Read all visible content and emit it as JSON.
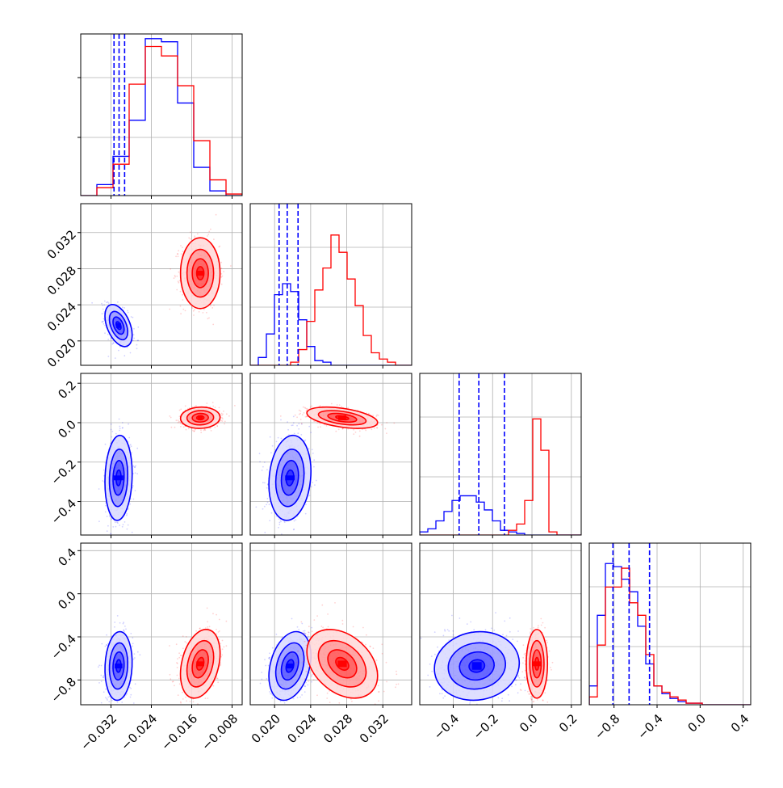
{
  "chart_data": {
    "type": "corner",
    "colors": {
      "blue": "#0000ff",
      "red": "#ff0000",
      "grid": "#b0b0b0"
    },
    "variables": [
      {
        "range": [
          -0.038,
          -0.006
        ],
        "ticks": [
          "−0.032",
          "−0.024",
          "−0.016",
          "−0.008"
        ],
        "tick_values": [
          -0.032,
          -0.024,
          -0.016,
          -0.008
        ]
      },
      {
        "range": [
          0.0173,
          0.0352
        ],
        "ticks": [
          "0.020",
          "0.024",
          "0.028",
          "0.032"
        ],
        "tick_values": [
          0.02,
          0.024,
          0.028,
          0.032
        ]
      },
      {
        "range": [
          -0.57,
          0.25
        ],
        "ticks": [
          "−0.4",
          "−0.2",
          "0.0",
          "0.2"
        ],
        "tick_values": [
          -0.4,
          -0.2,
          0.0,
          0.2
        ]
      },
      {
        "range": [
          -1.03,
          0.47
        ],
        "ticks": [
          "−0.8",
          "−0.4",
          "0.0",
          "0.4"
        ],
        "tick_values": [
          -0.8,
          -0.4,
          0.0,
          0.4
        ]
      }
    ],
    "series": [
      {
        "color": "blue",
        "means": [
          -0.0305,
          0.0217,
          -0.28,
          -0.67
        ],
        "sds": [
          0.0011,
          0.00095,
          0.088,
          0.13
        ],
        "quantiles": [
          [
            -0.0314,
            -0.0304,
            -0.0293
          ],
          [
            0.0205,
            0.0214,
            0.0226
          ],
          [
            -0.37,
            -0.27,
            -0.14
          ],
          [
            -0.81,
            -0.66,
            -0.47
          ]
        ],
        "hist": [
          [
            0.0,
            0.07,
            0.25,
            0.48,
            1.0,
            0.98,
            0.59,
            0.18,
            0.03,
            0.0
          ],
          [
            0.0,
            0.05,
            0.2,
            0.45,
            0.52,
            0.47,
            0.29,
            0.12,
            0.03,
            0.02,
            0.0,
            0.0,
            0.0,
            0.0,
            0.0,
            0.0,
            0.0,
            0.0,
            0.0,
            0.0
          ],
          [
            0.02,
            0.04,
            0.09,
            0.15,
            0.22,
            0.25,
            0.25,
            0.21,
            0.16,
            0.09,
            0.03,
            0.02,
            0.01,
            0.0,
            0.0,
            0.0,
            0.0,
            0.0,
            0.0,
            0.0
          ],
          [
            0.12,
            0.57,
            0.9,
            0.88,
            0.8,
            0.72,
            0.5,
            0.26,
            0.12,
            0.07,
            0.04,
            0.02,
            0.01,
            0.01,
            0.0,
            0.0,
            0.0,
            0.0,
            0.0,
            0.0
          ]
        ]
      },
      {
        "color": "red",
        "means": [
          -0.0143,
          0.0275,
          0.025,
          -0.65
        ],
        "sds": [
          0.0016,
          0.0016,
          0.022,
          0.13
        ],
        "hist": [
          [
            0.0,
            0.05,
            0.2,
            0.71,
            0.95,
            0.89,
            0.7,
            0.35,
            0.1,
            0.01
          ],
          [
            0.0,
            0.0,
            0.0,
            0.0,
            0.0,
            0.02,
            0.1,
            0.28,
            0.48,
            0.62,
            0.83,
            0.72,
            0.55,
            0.38,
            0.19,
            0.08,
            0.04,
            0.02,
            0.0,
            0.0
          ],
          [
            0.0,
            0.0,
            0.0,
            0.0,
            0.0,
            0.0,
            0.0,
            0.0,
            0.0,
            0.0,
            0.0,
            0.03,
            0.07,
            0.22,
            0.74,
            0.54,
            0.02,
            0.0,
            0.0,
            0.0
          ],
          [
            0.05,
            0.38,
            0.75,
            0.75,
            0.87,
            0.65,
            0.57,
            0.32,
            0.12,
            0.08,
            0.05,
            0.03,
            0.01,
            0.01,
            0.0,
            0.0,
            0.0,
            0.0,
            0.0,
            0.0
          ]
        ]
      }
    ],
    "correlations": {
      "blue": {
        "1_0": -0.45,
        "2_0": 0.1,
        "2_1": 0.15,
        "3_0": 0.1,
        "3_1": 0.3,
        "3_2": 0.08
      },
      "red": {
        "1_0": 0.0,
        "2_0": 0.05,
        "2_1": -0.45,
        "3_0": 0.3,
        "3_1": -0.35,
        "3_2": 0.0
      }
    },
    "grid": true
  }
}
